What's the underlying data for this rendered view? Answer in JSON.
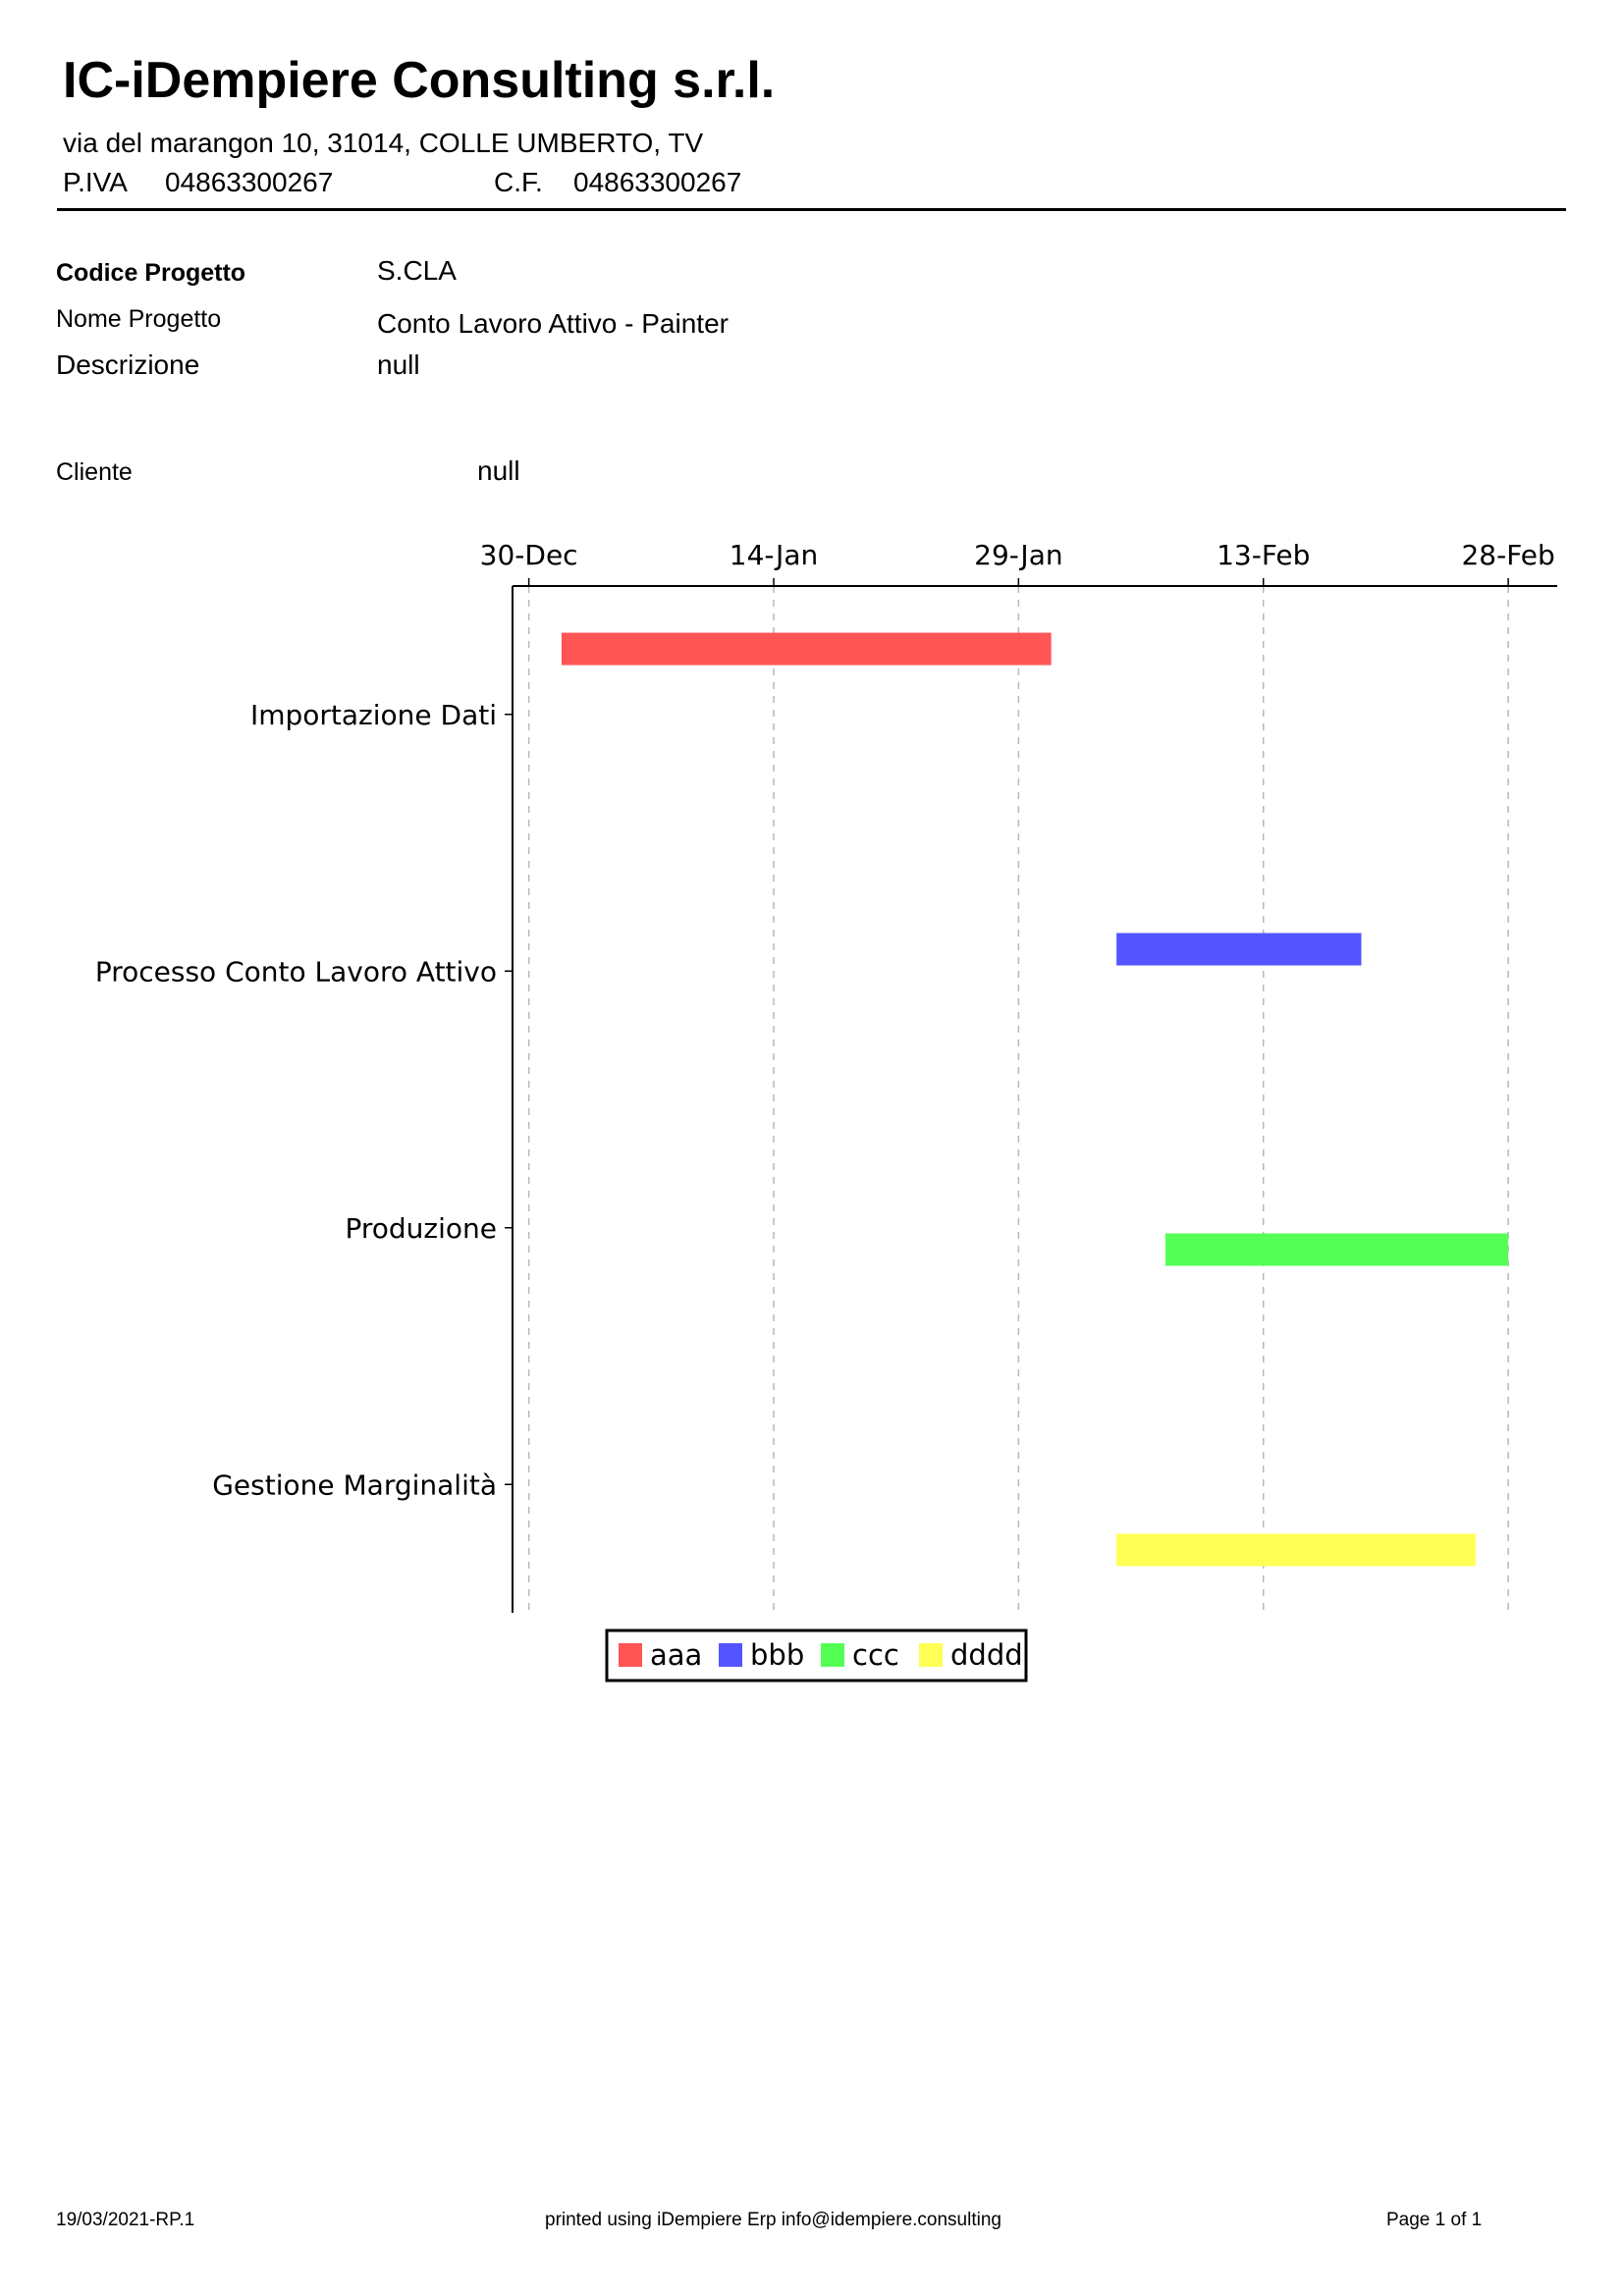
{
  "company": {
    "name": "IC-iDempiere Consulting s.r.l.",
    "address": "via del marangon 10, 31014, COLLE UMBERTO, TV",
    "vat_label": "P.IVA",
    "vat_value": "04863300267",
    "cf_label": "C.F.",
    "cf_value": "04863300267"
  },
  "project": {
    "code_label": "Codice Progetto",
    "code_value": "S.CLA",
    "name_label": "Nome Progetto",
    "name_value": "Conto Lavoro Attivo - Painter",
    "description_label": "Descrizione",
    "description_value": "null",
    "client_label": "Cliente",
    "client_value": "null"
  },
  "chart_data": {
    "type": "gantt",
    "x_ticks": [
      "30-Dec",
      "14-Jan",
      "29-Jan",
      "13-Feb",
      "28-Feb"
    ],
    "x_tick_offsets_days": [
      0,
      15,
      30,
      45,
      60
    ],
    "xlim_days": [
      -1,
      63
    ],
    "categories": [
      "Importazione Dati",
      "Processo Conto Lavoro Attivo",
      "Produzione",
      "Gestione Marginalità"
    ],
    "series": [
      {
        "name": "aaa",
        "color": "#ff5555",
        "category": 0,
        "start_day": 2,
        "end_day": 32
      },
      {
        "name": "bbb",
        "color": "#5555ff",
        "category": 1,
        "start_day": 36,
        "end_day": 51
      },
      {
        "name": "ccc",
        "color": "#55ff55",
        "category": 2,
        "start_day": 39,
        "end_day": 60
      },
      {
        "name": "dddd",
        "color": "#ffff55",
        "category": 3,
        "start_day": 36,
        "end_day": 58
      }
    ],
    "grid": true,
    "legend": "bottom"
  },
  "footer": {
    "left": "19/03/2021-RP.1",
    "center": "printed using iDempiere Erp info@idempiere.consulting",
    "right": "Page 1 of 1"
  }
}
